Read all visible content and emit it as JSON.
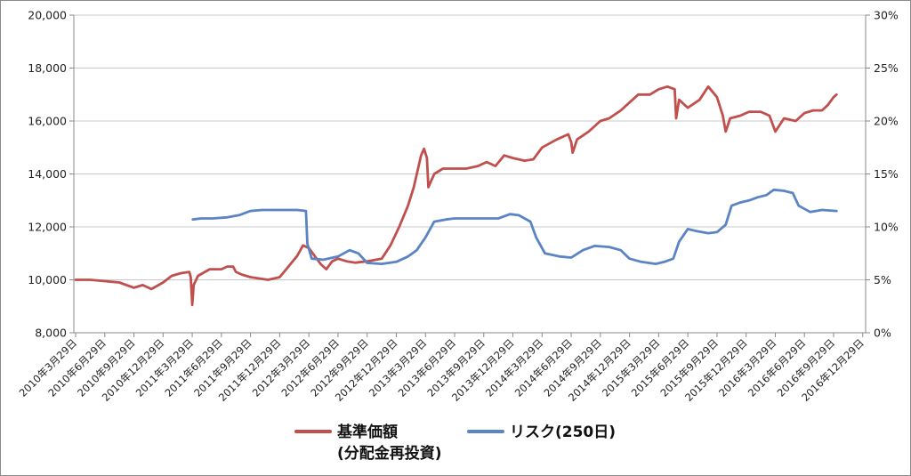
{
  "chart_data": {
    "type": "line",
    "title": "",
    "xlabel": "",
    "ylabel": "",
    "y_left": {
      "range": [
        8000,
        20000
      ],
      "ticks": [
        "8,000",
        "10,000",
        "12,000",
        "14,000",
        "16,000",
        "18,000",
        "20,000"
      ]
    },
    "y_right": {
      "range": [
        0,
        30
      ],
      "ticks": [
        "0%",
        "5%",
        "10%",
        "15%",
        "20%",
        "25%",
        "30%"
      ]
    },
    "x_ticks": [
      "2010年3月29日",
      "2010年6月29日",
      "2010年9月29日",
      "2010年12月29日",
      "2011年3月29日",
      "2011年6月29日",
      "2011年9月29日",
      "2011年12月29日",
      "2012年3月29日",
      "2012年6月29日",
      "2012年9月29日",
      "2012年12月29日",
      "2013年3月29日",
      "2013年6月29日",
      "2013年9月29日",
      "2013年12月29日",
      "2014年3月29日",
      "2014年6月29日",
      "2014年9月29日",
      "2014年12月29日",
      "2015年3月29日",
      "2015年6月29日",
      "2015年9月29日",
      "2015年12月29日",
      "2016年3月29日",
      "2016年6月29日",
      "2016年9月29日",
      "2016年12月29日"
    ],
    "grid": {
      "horizontal": true,
      "vertical": false
    },
    "legend_position": "bottom",
    "series": [
      {
        "name": "基準価額\n(分配金再投資)",
        "axis": "left",
        "color": "#c0504d",
        "points": [
          [
            0,
            10000
          ],
          [
            0.5,
            10000
          ],
          [
            1,
            9950
          ],
          [
            1.5,
            9900
          ],
          [
            2,
            9700
          ],
          [
            2.3,
            9800
          ],
          [
            2.6,
            9650
          ],
          [
            3,
            9900
          ],
          [
            3.3,
            10150
          ],
          [
            3.6,
            10250
          ],
          [
            3.9,
            10300
          ],
          [
            3.95,
            10100
          ],
          [
            4.0,
            9050
          ],
          [
            4.05,
            9800
          ],
          [
            4.2,
            10150
          ],
          [
            4.6,
            10400
          ],
          [
            5,
            10400
          ],
          [
            5.2,
            10500
          ],
          [
            5.4,
            10500
          ],
          [
            5.5,
            10300
          ],
          [
            5.7,
            10200
          ],
          [
            6,
            10100
          ],
          [
            6.3,
            10050
          ],
          [
            6.6,
            10000
          ],
          [
            7,
            10100
          ],
          [
            7.3,
            10500
          ],
          [
            7.6,
            10900
          ],
          [
            7.8,
            11300
          ],
          [
            8.0,
            11200
          ],
          [
            8.2,
            10900
          ],
          [
            8.4,
            10600
          ],
          [
            8.6,
            10400
          ],
          [
            8.8,
            10700
          ],
          [
            9.0,
            10800
          ],
          [
            9.3,
            10700
          ],
          [
            9.6,
            10650
          ],
          [
            10,
            10700
          ],
          [
            10.5,
            10800
          ],
          [
            10.8,
            11300
          ],
          [
            11.1,
            12000
          ],
          [
            11.4,
            12800
          ],
          [
            11.6,
            13500
          ],
          [
            11.85,
            14700
          ],
          [
            11.95,
            14950
          ],
          [
            12.05,
            14600
          ],
          [
            12.1,
            13500
          ],
          [
            12.3,
            14000
          ],
          [
            12.6,
            14200
          ],
          [
            13,
            14200
          ],
          [
            13.4,
            14200
          ],
          [
            13.8,
            14300
          ],
          [
            14.1,
            14450
          ],
          [
            14.4,
            14300
          ],
          [
            14.7,
            14700
          ],
          [
            15,
            14600
          ],
          [
            15.4,
            14500
          ],
          [
            15.7,
            14550
          ],
          [
            16,
            15000
          ],
          [
            16.5,
            15300
          ],
          [
            16.9,
            15500
          ],
          [
            17,
            15200
          ],
          [
            17.05,
            14800
          ],
          [
            17.2,
            15300
          ],
          [
            17.6,
            15600
          ],
          [
            18,
            16000
          ],
          [
            18.3,
            16100
          ],
          [
            18.7,
            16400
          ],
          [
            19,
            16700
          ],
          [
            19.3,
            17000
          ],
          [
            19.7,
            17000
          ],
          [
            20,
            17200
          ],
          [
            20.3,
            17300
          ],
          [
            20.55,
            17200
          ],
          [
            20.6,
            16100
          ],
          [
            20.7,
            16800
          ],
          [
            21,
            16500
          ],
          [
            21.4,
            16800
          ],
          [
            21.7,
            17300
          ],
          [
            22,
            16900
          ],
          [
            22.2,
            16200
          ],
          [
            22.3,
            15600
          ],
          [
            22.45,
            16100
          ],
          [
            22.8,
            16200
          ],
          [
            23.1,
            16350
          ],
          [
            23.5,
            16350
          ],
          [
            23.8,
            16200
          ],
          [
            24,
            15600
          ],
          [
            24.3,
            16100
          ],
          [
            24.7,
            16000
          ],
          [
            25,
            16300
          ],
          [
            25.3,
            16400
          ],
          [
            25.6,
            16400
          ],
          [
            25.8,
            16600
          ],
          [
            26,
            16900
          ],
          [
            26.1,
            17000
          ]
        ]
      },
      {
        "name": "リスク(250日)",
        "axis": "right",
        "color": "#5b84c4",
        "points": [
          [
            4.02,
            10.7
          ],
          [
            4.3,
            10.8
          ],
          [
            4.7,
            10.8
          ],
          [
            5.2,
            10.9
          ],
          [
            5.6,
            11.1
          ],
          [
            6.0,
            11.5
          ],
          [
            6.4,
            11.6
          ],
          [
            7,
            11.6
          ],
          [
            7.6,
            11.6
          ],
          [
            7.9,
            11.5
          ],
          [
            7.95,
            8.4
          ],
          [
            8.1,
            7.0
          ],
          [
            8.5,
            6.9
          ],
          [
            9,
            7.2
          ],
          [
            9.4,
            7.8
          ],
          [
            9.7,
            7.5
          ],
          [
            10,
            6.6
          ],
          [
            10.5,
            6.5
          ],
          [
            11,
            6.7
          ],
          [
            11.4,
            7.2
          ],
          [
            11.7,
            7.8
          ],
          [
            12,
            9.0
          ],
          [
            12.3,
            10.5
          ],
          [
            12.7,
            10.7
          ],
          [
            13,
            10.8
          ],
          [
            13.6,
            10.8
          ],
          [
            14.2,
            10.8
          ],
          [
            14.5,
            10.8
          ],
          [
            14.9,
            11.2
          ],
          [
            15.2,
            11.1
          ],
          [
            15.6,
            10.5
          ],
          [
            15.8,
            9.0
          ],
          [
            16.1,
            7.5
          ],
          [
            16.6,
            7.2
          ],
          [
            17,
            7.1
          ],
          [
            17.4,
            7.8
          ],
          [
            17.8,
            8.2
          ],
          [
            18.3,
            8.1
          ],
          [
            18.7,
            7.8
          ],
          [
            19,
            7.0
          ],
          [
            19.4,
            6.7
          ],
          [
            19.9,
            6.5
          ],
          [
            20.2,
            6.7
          ],
          [
            20.5,
            7.0
          ],
          [
            20.7,
            8.6
          ],
          [
            21,
            9.8
          ],
          [
            21.3,
            9.6
          ],
          [
            21.7,
            9.4
          ],
          [
            22,
            9.5
          ],
          [
            22.3,
            10.2
          ],
          [
            22.5,
            12.0
          ],
          [
            22.8,
            12.3
          ],
          [
            23.1,
            12.5
          ],
          [
            23.4,
            12.8
          ],
          [
            23.7,
            13.0
          ],
          [
            23.95,
            13.5
          ],
          [
            24.3,
            13.4
          ],
          [
            24.6,
            13.2
          ],
          [
            24.8,
            12.0
          ],
          [
            25.2,
            11.4
          ],
          [
            25.6,
            11.6
          ],
          [
            26.1,
            11.5
          ]
        ]
      }
    ]
  }
}
